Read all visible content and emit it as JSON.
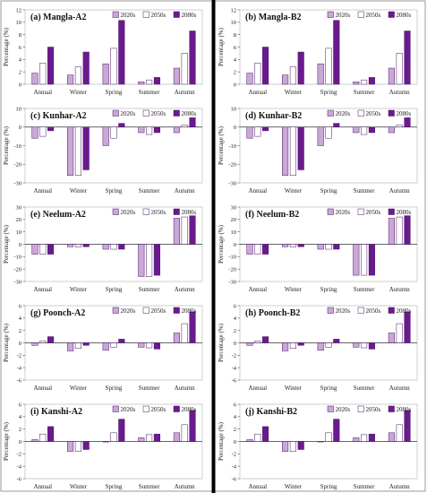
{
  "colors": {
    "s2020": "#c9a8d8",
    "s2050": "#ffffff",
    "s2080": "#6a1a8e",
    "stroke": "#4b1666",
    "divider": "#000000",
    "frame": "#999999"
  },
  "legend": [
    "2020s",
    "2050s",
    "2080s"
  ],
  "chart_data": [
    {
      "type": "bar",
      "title": "(a) Mangla-A2",
      "ylabel": "Percentage (%)",
      "ylim": [
        0,
        12
      ],
      "yticks": [
        0,
        2,
        4,
        6,
        8,
        10,
        12
      ],
      "categories": [
        "Annual",
        "Winter",
        "Spring",
        "Summer",
        "Autumn"
      ],
      "series": [
        {
          "name": "2020s",
          "values": [
            1.8,
            1.5,
            3.3,
            0.4,
            2.6
          ]
        },
        {
          "name": "2050s",
          "values": [
            3.4,
            2.8,
            5.8,
            0.7,
            5.0
          ]
        },
        {
          "name": "2080s",
          "values": [
            6.0,
            5.2,
            10.3,
            1.1,
            8.6
          ]
        }
      ]
    },
    {
      "type": "bar",
      "title": "(b) Mangla-B2",
      "ylabel": "Percentage (%)",
      "ylim": [
        0,
        12
      ],
      "yticks": [
        0,
        2,
        4,
        6,
        8,
        10,
        12
      ],
      "categories": [
        "Annual",
        "Winter",
        "Spring",
        "Summer",
        "Autumn"
      ],
      "series": [
        {
          "name": "2020s",
          "values": [
            1.8,
            1.5,
            3.3,
            0.4,
            2.6
          ]
        },
        {
          "name": "2050s",
          "values": [
            3.4,
            2.8,
            5.8,
            0.7,
            5.0
          ]
        },
        {
          "name": "2080s",
          "values": [
            6.0,
            5.2,
            10.3,
            1.1,
            8.6
          ]
        }
      ]
    },
    {
      "type": "bar",
      "title": "(c) Kunhar-A2",
      "ylabel": "Percentage (%)",
      "ylim": [
        -30,
        10
      ],
      "yticks": [
        -30,
        -20,
        -10,
        0,
        10
      ],
      "categories": [
        "Annual",
        "Winter",
        "Spring",
        "Summer",
        "Autumn"
      ],
      "series": [
        {
          "name": "2020s",
          "values": [
            -6,
            -26,
            -10,
            -3,
            -3
          ]
        },
        {
          "name": "2050s",
          "values": [
            -5,
            -26,
            -6,
            -4,
            1
          ]
        },
        {
          "name": "2080s",
          "values": [
            -2,
            -23,
            2,
            -3,
            5
          ]
        }
      ]
    },
    {
      "type": "bar",
      "title": "(d) Kunhar-B2",
      "ylabel": "Percentage (%)",
      "ylim": [
        -30,
        10
      ],
      "yticks": [
        -30,
        -20,
        -10,
        0,
        10
      ],
      "categories": [
        "Annual",
        "Winter",
        "Spring",
        "Summer",
        "Autumn"
      ],
      "series": [
        {
          "name": "2020s",
          "values": [
            -6,
            -26,
            -10,
            -3,
            -3
          ]
        },
        {
          "name": "2050s",
          "values": [
            -5,
            -26,
            -6,
            -4,
            1
          ]
        },
        {
          "name": "2080s",
          "values": [
            -2,
            -23,
            2,
            -3,
            5
          ]
        }
      ]
    },
    {
      "type": "bar",
      "title": "(e) Neelum-A2",
      "ylabel": "Percentage (%)",
      "ylim": [
        -30,
        30
      ],
      "yticks": [
        -30,
        -20,
        -10,
        0,
        10,
        20,
        30
      ],
      "categories": [
        "Annual",
        "Winter",
        "Spring",
        "Summer",
        "Autumn"
      ],
      "series": [
        {
          "name": "2020s",
          "values": [
            -8,
            -2,
            -4,
            -26,
            21
          ]
        },
        {
          "name": "2050s",
          "values": [
            -8,
            -2,
            -4,
            -26,
            22
          ]
        },
        {
          "name": "2080s",
          "values": [
            -8,
            -2,
            -4,
            -25,
            23
          ]
        }
      ]
    },
    {
      "type": "bar",
      "title": "(f) Neelum-B2",
      "ylabel": "Percentage (%)",
      "ylim": [
        -30,
        30
      ],
      "yticks": [
        -30,
        -20,
        -10,
        0,
        10,
        20,
        30
      ],
      "categories": [
        "Annual",
        "Winter",
        "Spring",
        "Summer",
        "Autumn"
      ],
      "series": [
        {
          "name": "2020s",
          "values": [
            -8,
            -2,
            -4,
            -25,
            21
          ]
        },
        {
          "name": "2050s",
          "values": [
            -8,
            -2,
            -4,
            -25,
            22
          ]
        },
        {
          "name": "2080s",
          "values": [
            -8,
            -2,
            -4,
            -25,
            23
          ]
        }
      ]
    },
    {
      "type": "bar",
      "title": "(g) Poonch-A2",
      "ylabel": "Percentage (%)",
      "ylim": [
        -6,
        6
      ],
      "yticks": [
        -6,
        -4,
        -2,
        0,
        2,
        4,
        6
      ],
      "categories": [
        "Annual",
        "Winter",
        "Spring",
        "Summer",
        "Autumn"
      ],
      "series": [
        {
          "name": "2020s",
          "values": [
            -0.4,
            -1.3,
            -1.2,
            -0.7,
            1.6
          ]
        },
        {
          "name": "2050s",
          "values": [
            0.3,
            -0.9,
            -0.7,
            -0.8,
            3.1
          ]
        },
        {
          "name": "2080s",
          "values": [
            1.0,
            -0.4,
            0.6,
            -1.0,
            5.0
          ]
        }
      ]
    },
    {
      "type": "bar",
      "title": "(h) Poonch-B2",
      "ylabel": "Percentage (%)",
      "ylim": [
        -6,
        6
      ],
      "yticks": [
        -6,
        -4,
        -2,
        0,
        2,
        4,
        6
      ],
      "categories": [
        "Annual",
        "Winter",
        "Spring",
        "Summer",
        "Autumn"
      ],
      "series": [
        {
          "name": "2020s",
          "values": [
            -0.4,
            -1.3,
            -1.2,
            -0.7,
            1.6
          ]
        },
        {
          "name": "2050s",
          "values": [
            0.3,
            -0.9,
            -0.7,
            -0.8,
            3.1
          ]
        },
        {
          "name": "2080s",
          "values": [
            1.0,
            -0.4,
            0.6,
            -1.0,
            5.0
          ]
        }
      ]
    },
    {
      "type": "bar",
      "title": "(i) Kanshi-A2",
      "ylabel": "Percentage (%)",
      "ylim": [
        -6,
        6
      ],
      "yticks": [
        -6,
        -4,
        -2,
        0,
        2,
        4,
        6
      ],
      "categories": [
        "Annual",
        "Winter",
        "Spring",
        "Summer",
        "Autumn"
      ],
      "series": [
        {
          "name": "2020s",
          "values": [
            0.3,
            -1.6,
            0.0,
            0.6,
            1.4
          ]
        },
        {
          "name": "2050s",
          "values": [
            1.2,
            -1.6,
            1.4,
            1.1,
            2.7
          ]
        },
        {
          "name": "2080s",
          "values": [
            2.4,
            -1.3,
            3.6,
            1.2,
            5.0
          ]
        }
      ]
    },
    {
      "type": "bar",
      "title": "(j) Kanshi-B2",
      "ylabel": "Percentage (%)",
      "ylim": [
        -6,
        6
      ],
      "yticks": [
        -6,
        -4,
        -2,
        0,
        2,
        4,
        6
      ],
      "categories": [
        "Annual",
        "Winter",
        "Spring",
        "Summer",
        "Autumn"
      ],
      "series": [
        {
          "name": "2020s",
          "values": [
            0.3,
            -1.6,
            0.0,
            0.6,
            1.4
          ]
        },
        {
          "name": "2050s",
          "values": [
            1.2,
            -1.6,
            1.4,
            1.1,
            2.7
          ]
        },
        {
          "name": "2080s",
          "values": [
            2.4,
            -1.3,
            3.6,
            1.2,
            5.0
          ]
        }
      ]
    }
  ]
}
